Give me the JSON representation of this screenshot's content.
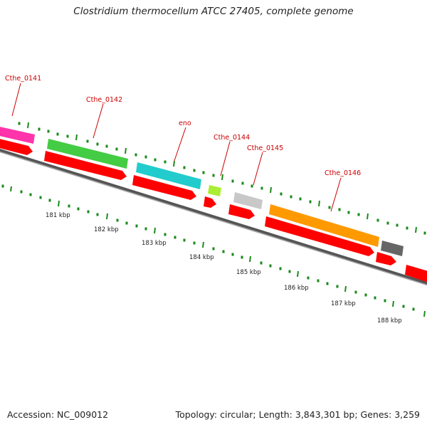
{
  "header": {
    "title": "Clostridium thermocellum ATCC 27405, complete genome"
  },
  "footer": {
    "accession": "Accession: NC_009012",
    "stats": "Topology: circular; Length: 3,843,301 bp; Genes: 3,259"
  },
  "map": {
    "colors": {
      "backbone": "#777777",
      "cds": "#ff0000",
      "tick": "#1a8a1a",
      "label": "#cc0000",
      "leader": "#cc0000"
    },
    "gene_labels": [
      "Cthe_0141",
      "Cthe_0142",
      "eno",
      "Cthe_0144",
      "Cthe_0145",
      "Cthe_0146"
    ],
    "kbp_labels": [
      "181 kbp",
      "182 kbp",
      "183 kbp",
      "184 kbp",
      "185 kbp",
      "186 kbp",
      "187 kbp",
      "188 kbp"
    ],
    "cog_colors": [
      "#ff33aa",
      "#44cc44",
      "#22cccc",
      "#aaee33",
      "#c8c8c8",
      "#ff9900",
      "#666666"
    ]
  }
}
